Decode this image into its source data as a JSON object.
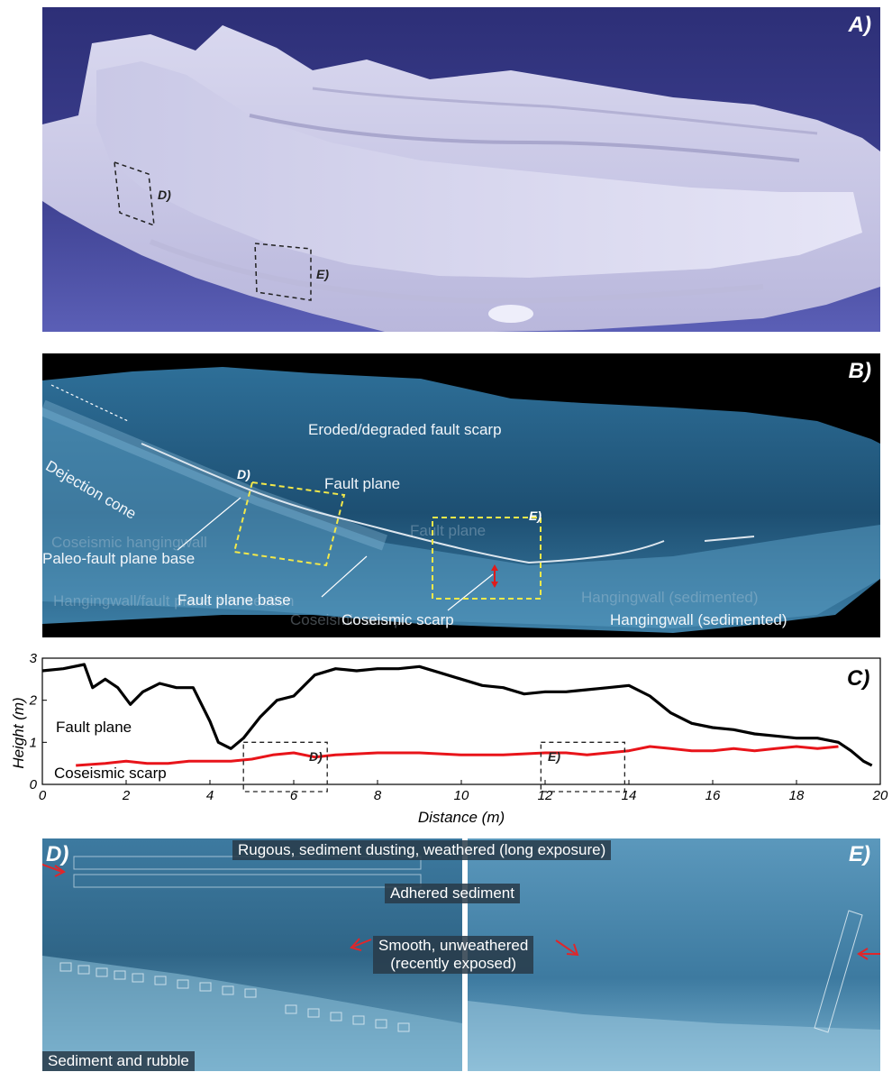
{
  "panel_a": {
    "letter": "A)",
    "box_d_label": "D)",
    "box_e_label": "E)"
  },
  "panel_b": {
    "letter": "B)",
    "labels": {
      "eroded": "Eroded/degraded fault scarp",
      "fault_plane": "Fault plane",
      "fault_plane_faded": "Fault plane",
      "dejection": "Dejection cone",
      "coseismic_hw_faded": "Coseismic hangingwall",
      "paleo": "Paleo-fault plane base",
      "hw_intersection_faded": "Hangingwall/fault plane intersection",
      "fault_plane_base": "Fault plane base",
      "coseismic_faded": "Coseismic scarp",
      "coseismic": "Coseismic scarp",
      "hw_sed_faded": "Hangingwall (sedimented)",
      "hw_sed": "Hangingwall (sedimented)",
      "box_d": "D)",
      "box_e": "E)"
    }
  },
  "panel_c": {
    "letter": "C)",
    "fault_plane_label": "Fault plane",
    "coseismic_label": "Coseismic scarp",
    "box_d_label": "D)",
    "box_e_label": "E)"
  },
  "panel_de": {
    "letter_d": "D)",
    "letter_e": "E)",
    "rugous": "Rugous, sediment dusting, weathered (long exposure)",
    "adhered": "Adhered sediment",
    "smooth_1": "Smooth, unweathered",
    "smooth_2": "(recently exposed)",
    "rubble": "Sediment and rubble"
  },
  "chart_data": {
    "type": "line",
    "xlabel": "Distance (m)",
    "ylabel": "Height (m)",
    "xlim": [
      0,
      20
    ],
    "ylim": [
      0,
      3
    ],
    "x_ticks": [
      "0",
      "2",
      "4",
      "6",
      "8",
      "10",
      "12",
      "14",
      "16",
      "18",
      "20"
    ],
    "y_ticks": [
      "0",
      "1",
      "2",
      "3"
    ],
    "series": [
      {
        "name": "Fault plane",
        "color": "#000000",
        "x": [
          0,
          0.5,
          1.0,
          1.2,
          1.5,
          1.8,
          2.1,
          2.4,
          2.8,
          3.2,
          3.6,
          4.0,
          4.2,
          4.5,
          4.8,
          5.2,
          5.6,
          6.0,
          6.5,
          7.0,
          7.5,
          8.0,
          8.5,
          9.0,
          9.5,
          10.0,
          10.5,
          11.0,
          11.5,
          12.0,
          12.5,
          13.0,
          13.5,
          14.0,
          14.5,
          15.0,
          15.5,
          16.0,
          16.5,
          17.0,
          17.5,
          18.0,
          18.5,
          19.0,
          19.3,
          19.6,
          19.8
        ],
        "y": [
          2.7,
          2.75,
          2.85,
          2.3,
          2.5,
          2.3,
          1.9,
          2.2,
          2.4,
          2.3,
          2.3,
          1.5,
          1.0,
          0.85,
          1.1,
          1.6,
          2.0,
          2.1,
          2.6,
          2.75,
          2.7,
          2.75,
          2.75,
          2.8,
          2.65,
          2.5,
          2.35,
          2.3,
          2.15,
          2.2,
          2.2,
          2.25,
          2.3,
          2.35,
          2.1,
          1.7,
          1.45,
          1.35,
          1.3,
          1.2,
          1.15,
          1.1,
          1.1,
          1.0,
          0.8,
          0.55,
          0.45
        ]
      },
      {
        "name": "Coseismic scarp",
        "color": "#e8141a",
        "x": [
          0.8,
          1.5,
          2.0,
          2.5,
          3.0,
          3.5,
          4.0,
          4.5,
          5.0,
          5.5,
          6.0,
          6.5,
          7.0,
          8.0,
          9.0,
          10.0,
          11.0,
          12.0,
          12.5,
          13.0,
          13.5,
          14.0,
          14.5,
          15.0,
          15.5,
          16.0,
          16.5,
          17.0,
          17.5,
          18.0,
          18.5,
          19.0
        ],
        "y": [
          0.45,
          0.5,
          0.55,
          0.5,
          0.5,
          0.55,
          0.55,
          0.55,
          0.6,
          0.7,
          0.75,
          0.65,
          0.7,
          0.75,
          0.75,
          0.7,
          0.7,
          0.75,
          0.75,
          0.7,
          0.75,
          0.8,
          0.9,
          0.85,
          0.8,
          0.8,
          0.85,
          0.8,
          0.85,
          0.9,
          0.85,
          0.9
        ]
      }
    ],
    "boxes": [
      {
        "label": "D)",
        "x": [
          4.8,
          6.8
        ],
        "y": [
          -0.2,
          1.0
        ]
      },
      {
        "label": "E)",
        "x": [
          11.9,
          13.9
        ],
        "y": [
          -0.2,
          1.0
        ]
      }
    ]
  }
}
